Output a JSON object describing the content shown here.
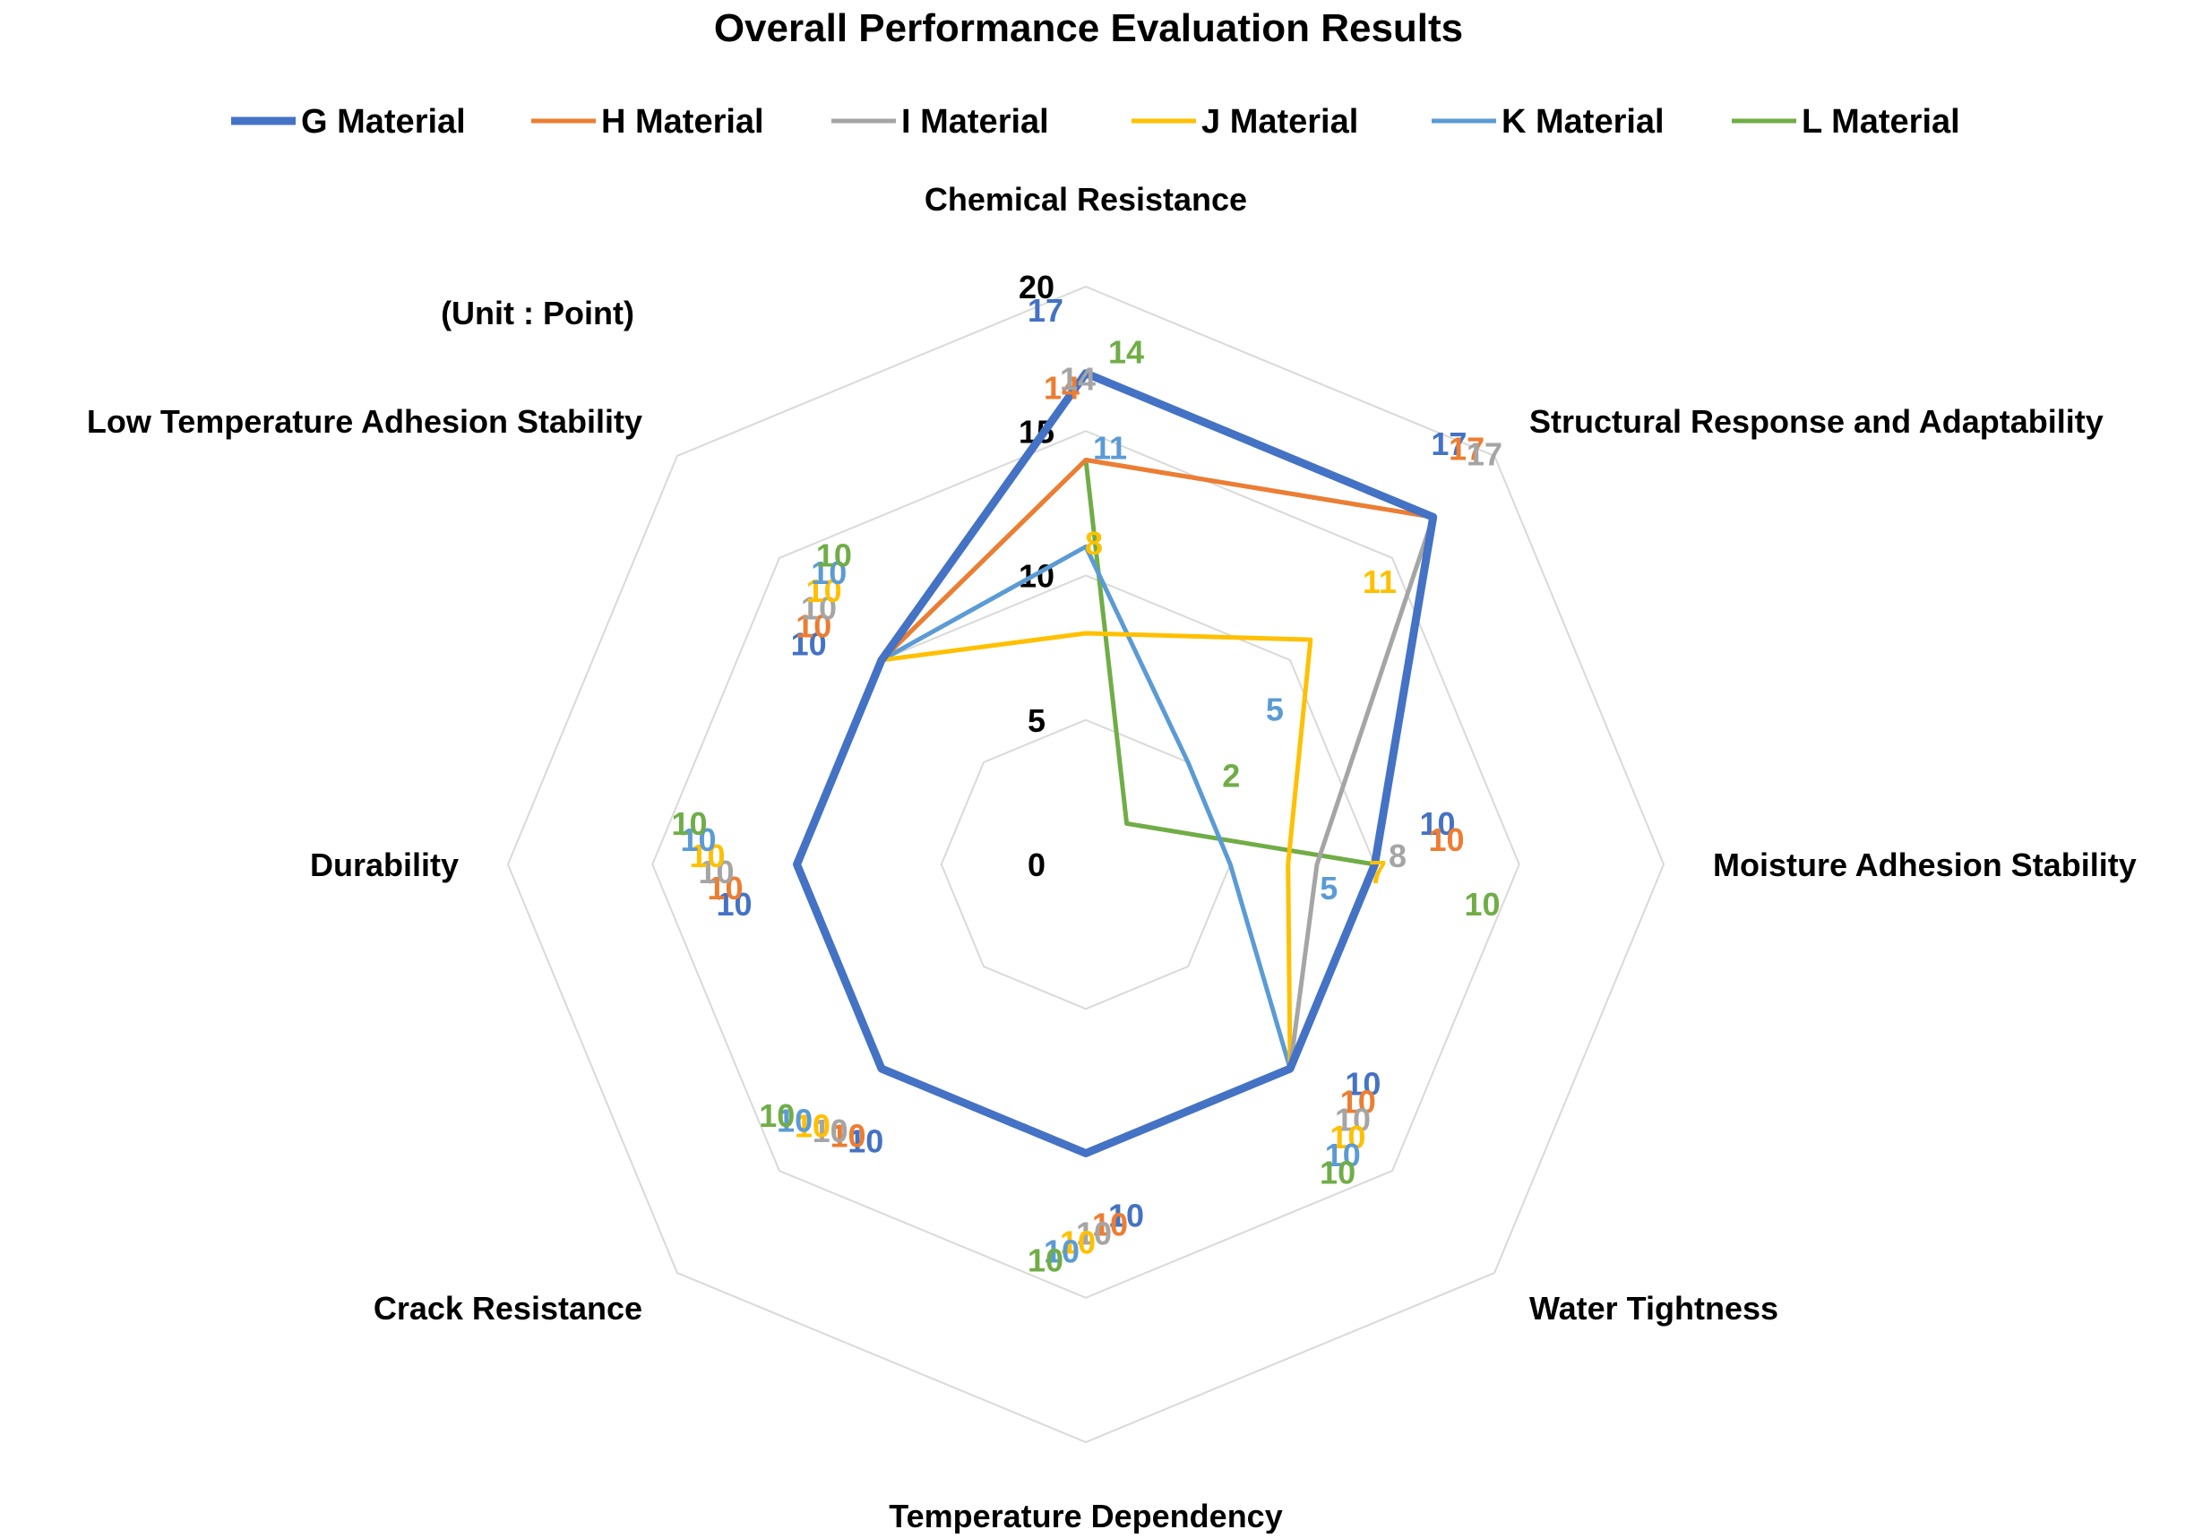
{
  "chart_data": {
    "type": "radar",
    "title": "Overall Performance Evaluation Results",
    "unit_note": "(Unit : Point)",
    "axes": [
      "Chemical Resistance",
      "Structural Response and Adaptability",
      "Moisture Adhesion Stability",
      "Water Tightness",
      "Temperature Dependency",
      "Crack Resistance",
      "Durability",
      "Low Temperature Adhesion Stability"
    ],
    "rlim": [
      0,
      20
    ],
    "ticks": [
      0,
      5,
      10,
      15,
      20
    ],
    "grid": true,
    "legend_position": "top",
    "series": [
      {
        "name": "G Material",
        "color": "#4472C4",
        "values": [
          17,
          17,
          10,
          10,
          10,
          10,
          10,
          10
        ],
        "labels": [
          "17",
          "17",
          "10",
          "10",
          "10",
          "10",
          "10",
          "10"
        ]
      },
      {
        "name": "H Material",
        "color": "#ED7D31",
        "values": [
          14,
          17,
          10,
          10,
          10,
          10,
          10,
          10
        ],
        "labels": [
          "14",
          "17",
          "10",
          "10",
          "10",
          "10",
          "10",
          "10"
        ]
      },
      {
        "name": "I Material",
        "color": "#A5A5A5",
        "values": [
          14,
          17,
          8,
          10,
          10,
          10,
          10,
          10
        ],
        "labels": [
          "14",
          "17",
          "8",
          "10",
          "10",
          "10",
          "10",
          "10"
        ]
      },
      {
        "name": "J Material",
        "color": "#FFC000",
        "values": [
          8,
          11,
          7,
          10,
          10,
          10,
          10,
          10
        ],
        "labels": [
          "8",
          "11",
          "7",
          "10",
          "10",
          "10",
          "10",
          "10"
        ]
      },
      {
        "name": "K Material",
        "color": "#5B9BD5",
        "values": [
          11,
          5,
          5,
          10,
          10,
          10,
          10,
          10
        ],
        "labels": [
          "11",
          "5",
          "5",
          "10",
          "10",
          "10",
          "10",
          "10"
        ]
      },
      {
        "name": "L Material",
        "color": "#70AD47",
        "values": [
          14,
          2,
          10,
          10,
          10,
          10,
          10,
          10
        ],
        "labels": [
          "14",
          "2",
          "10",
          "10",
          "10",
          "10",
          "10",
          "10"
        ]
      }
    ]
  }
}
